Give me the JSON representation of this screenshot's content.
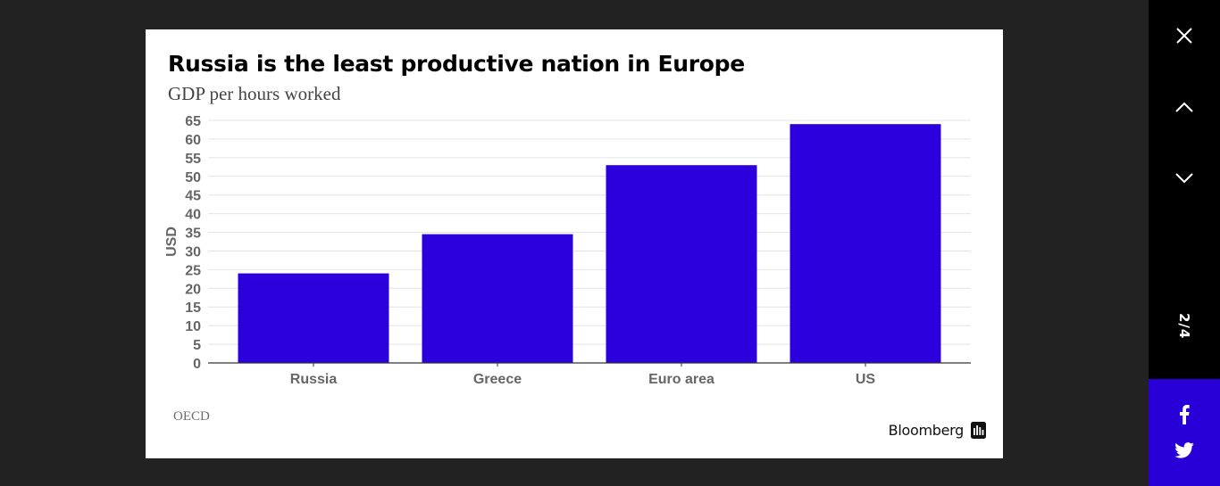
{
  "chart_data": {
    "type": "bar",
    "title": "Russia is the least productive nation in Europe",
    "subtitle": "GDP per hours worked",
    "xlabel": "",
    "ylabel": "USD",
    "categories": [
      "Russia",
      "Greece",
      "Euro area",
      "US"
    ],
    "values": [
      24,
      34.5,
      53,
      64
    ],
    "ylim": [
      0,
      65
    ],
    "yticks": [
      "0",
      "5",
      "10",
      "15",
      "20",
      "25",
      "30",
      "35",
      "40",
      "45",
      "50",
      "55",
      "60",
      "65"
    ],
    "grid": true,
    "source": "OECD",
    "bar_color": "#2c00dc"
  },
  "brand": {
    "name": "Bloomberg"
  },
  "sidebar": {
    "counter": "2/4",
    "close_icon": "close-icon",
    "prev_icon": "chevron-up-icon",
    "next_icon": "chevron-down-icon"
  },
  "share": {
    "facebook_icon": "facebook-icon",
    "twitter_icon": "twitter-icon",
    "color": "#2800d7"
  }
}
